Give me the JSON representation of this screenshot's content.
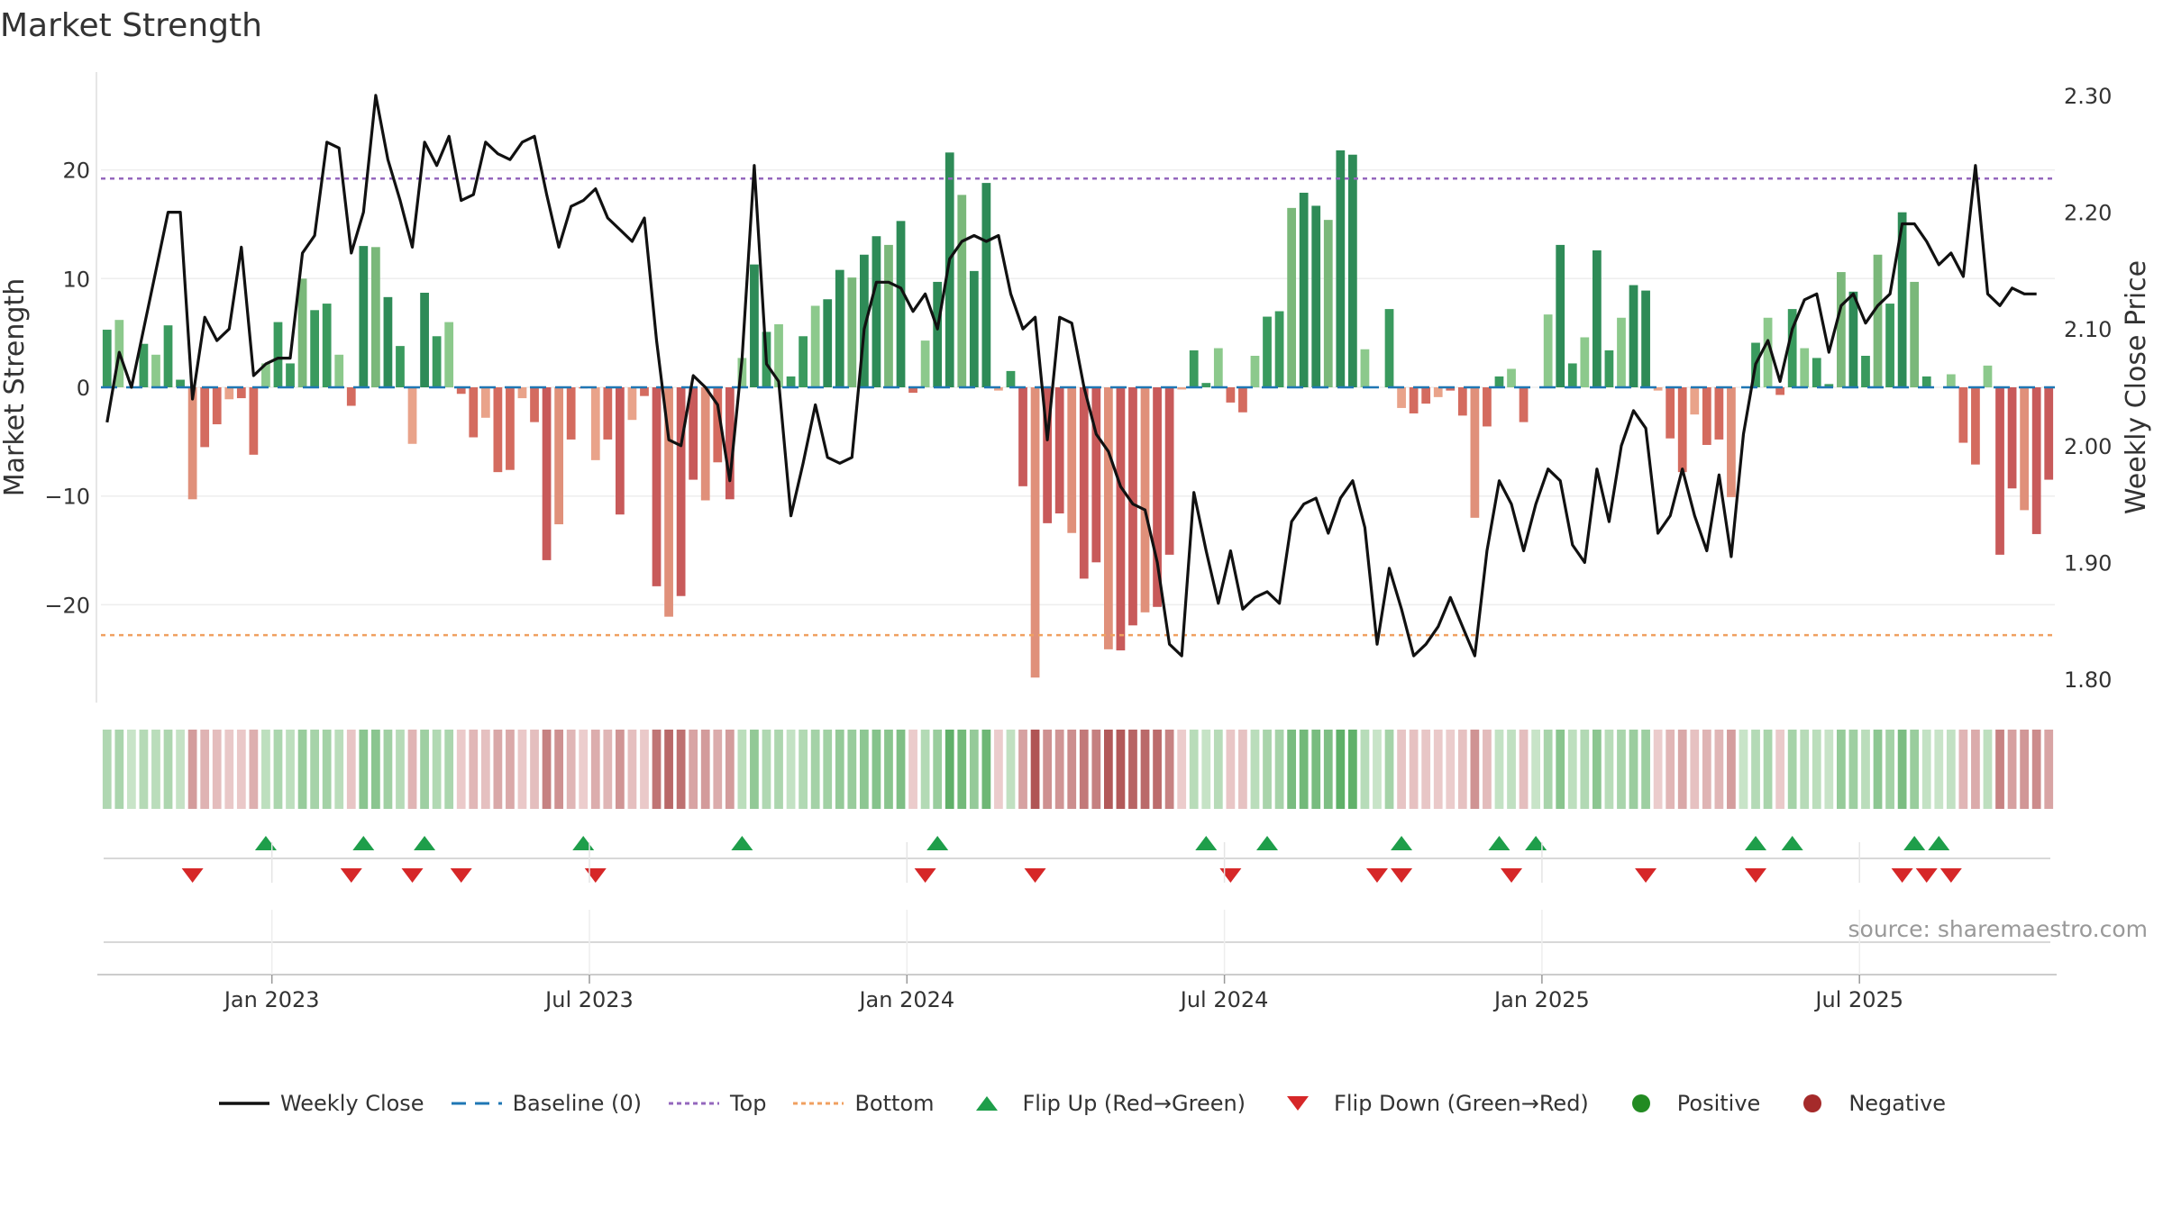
{
  "chart_data": {
    "type": "bar",
    "title": "Market Strength",
    "ylabel_left": "Market Strength",
    "ylabel_right": "Weekly Close Price",
    "ylim_left": [
      -29,
      29
    ],
    "ylim_right": [
      1.78,
      2.32
    ],
    "yticks_left": [
      20,
      10,
      0,
      -10,
      -20
    ],
    "ytick_labels_left": [
      "20",
      "10",
      "0",
      "−10",
      "−20"
    ],
    "yticks_right": [
      2.3,
      2.2,
      2.1,
      2.0,
      1.9,
      1.8
    ],
    "ytick_labels_right": [
      "2.30",
      "2.20",
      "2.10",
      "2.00",
      "1.90",
      "1.80"
    ],
    "top_level": 19.2,
    "bottom_level": -22.8,
    "xticks": [
      {
        "label": "Jan 2023",
        "week": 14
      },
      {
        "label": "Jul 2023",
        "week": 40
      },
      {
        "label": "Jan 2024",
        "week": 66
      },
      {
        "label": "Jul 2024",
        "week": 92
      },
      {
        "label": "Jan 2025",
        "week": 118
      },
      {
        "label": "Jul 2025",
        "week": 144
      }
    ],
    "strength": [
      5.3,
      6.2,
      0,
      4,
      3,
      5.7,
      0.7,
      -10.3,
      -5.5,
      -3.4,
      -1.1,
      -1,
      -6.2,
      2.2,
      6,
      2.2,
      10,
      7.1,
      7.7,
      3,
      -1.7,
      13,
      12.9,
      8.3,
      3.8,
      -5.2,
      8.7,
      4.7,
      6,
      -0.6,
      -4.6,
      -2.8,
      -7.8,
      -7.6,
      -1,
      -3.2,
      -15.9,
      -12.6,
      -4.8,
      -0.1,
      -6.7,
      -4.8,
      -11.7,
      -3,
      -0.8,
      -18.3,
      -21.1,
      -19.2,
      -8.5,
      -10.4,
      -6.9,
      -10.3,
      2.7,
      11.3,
      5.1,
      5.8,
      1,
      4.7,
      7.5,
      8.1,
      10.8,
      10.1,
      12.2,
      13.9,
      13.1,
      15.3,
      -0.5,
      4.3,
      9.7,
      21.6,
      17.7,
      10.7,
      18.8,
      -0.3,
      1.5,
      -9.1,
      -26.7,
      -12.5,
      -11.6,
      -13.4,
      -17.6,
      -16.1,
      -24.1,
      -24.2,
      -21.9,
      -20.7,
      -20.2,
      -15.4,
      -0.2,
      3.4,
      0.4,
      3.6,
      -1.4,
      -2.3,
      2.9,
      6.5,
      7,
      16.5,
      17.9,
      16.7,
      15.4,
      21.8,
      21.4,
      3.5,
      0,
      7.2,
      -1.9,
      -2.4,
      -1.5,
      -0.9,
      -0.3,
      -2.6,
      -12,
      -3.6,
      1,
      1.7,
      -3.2,
      0,
      6.7,
      13.1,
      2.2,
      4.6,
      12.6,
      3.4,
      6.4,
      9.4,
      8.9,
      -0.3,
      -4.7,
      -7.8,
      -2.5,
      -5.3,
      -4.8,
      -10.1,
      0,
      4.1,
      6.4,
      -0.7,
      7.2,
      3.6,
      2.7,
      0.3,
      10.6,
      8.8,
      2.9,
      12.2,
      7.7,
      16.1,
      9.7,
      1,
      0,
      1.2,
      -5.1,
      -7.1,
      2,
      -15.4,
      -9.3,
      -11.3,
      -13.5,
      -8.5
    ],
    "close": [
      2.02,
      2.08,
      2.05,
      2.1,
      2.15,
      2.2,
      2.2,
      2.04,
      2.11,
      2.09,
      2.1,
      2.17,
      2.06,
      2.07,
      2.075,
      2.075,
      2.165,
      2.18,
      2.26,
      2.255,
      2.165,
      2.2,
      2.3,
      2.245,
      2.21,
      2.17,
      2.26,
      2.24,
      2.265,
      2.21,
      2.215,
      2.26,
      2.25,
      2.245,
      2.26,
      2.265,
      2.215,
      2.17,
      2.205,
      2.21,
      2.22,
      2.195,
      2.185,
      2.175,
      2.195,
      2.09,
      2.005,
      2,
      2.06,
      2.05,
      2.035,
      1.97,
      2.075,
      2.24,
      2.07,
      2.055,
      1.94,
      1.985,
      2.035,
      1.99,
      1.985,
      1.99,
      2.1,
      2.14,
      2.14,
      2.135,
      2.115,
      2.13,
      2.1,
      2.16,
      2.175,
      2.18,
      2.175,
      2.18,
      2.13,
      2.1,
      2.11,
      2.005,
      2.11,
      2.105,
      2.05,
      2.01,
      1.995,
      1.965,
      1.95,
      1.945,
      1.9,
      1.83,
      1.82,
      1.96,
      1.91,
      1.865,
      1.91,
      1.86,
      1.87,
      1.875,
      1.865,
      1.935,
      1.95,
      1.955,
      1.925,
      1.955,
      1.97,
      1.93,
      1.83,
      1.895,
      1.86,
      1.82,
      1.83,
      1.845,
      1.87,
      1.845,
      1.82,
      1.91,
      1.97,
      1.95,
      1.91,
      1.95,
      1.98,
      1.97,
      1.915,
      1.9,
      1.98,
      1.935,
      2,
      2.03,
      2.015,
      1.925,
      1.94,
      1.98,
      1.94,
      1.91,
      1.975,
      1.905,
      2.01,
      2.07,
      2.09,
      2.055,
      2.1,
      2.125,
      2.13,
      2.08,
      2.12,
      2.13,
      2.105,
      2.12,
      2.13,
      2.19,
      2.19,
      2.175,
      2.155,
      2.165,
      2.145,
      2.24,
      2.13,
      2.12,
      2.135,
      2.13,
      2.13
    ],
    "flip_up_weeks": [
      13,
      21,
      26,
      39,
      52,
      68,
      90,
      95,
      106,
      114,
      117,
      135,
      138,
      148,
      150
    ],
    "flip_down_weeks": [
      7,
      20,
      25,
      29,
      40,
      67,
      76,
      92,
      104,
      106,
      115,
      126,
      135,
      147,
      149,
      151
    ],
    "series": [
      {
        "name": "Weekly Close",
        "color": "#111111"
      },
      {
        "name": "Baseline (0)",
        "color": "#1f77b4"
      },
      {
        "name": "Top",
        "color": "#9467bd"
      },
      {
        "name": "Bottom",
        "color": "#f0a060"
      },
      {
        "name": "Flip Up (Red→Green)",
        "color": "#1e9e4a"
      },
      {
        "name": "Flip Down (Green→Red)",
        "color": "#d62728"
      },
      {
        "name": "Positive",
        "color": "#228b22"
      },
      {
        "name": "Negative",
        "color": "#a52a2a"
      }
    ],
    "source_label": "source: sharemaestro.com",
    "legend_position": "bottom"
  }
}
